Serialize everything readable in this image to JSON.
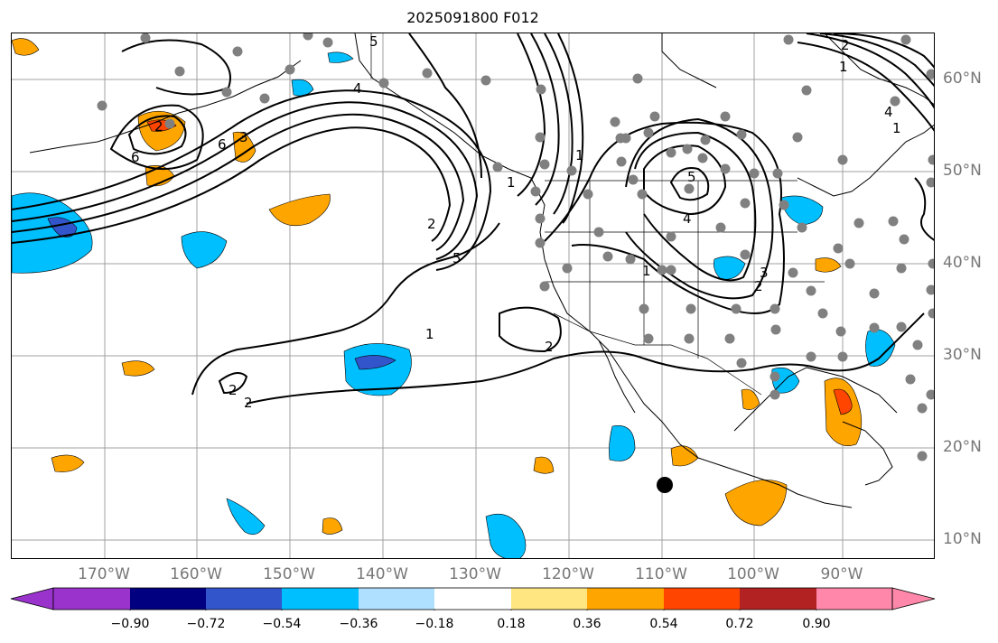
{
  "title": "2025091800 F012",
  "map": {
    "lon_labels": [
      "170°W",
      "160°W",
      "150°W",
      "140°W",
      "130°W",
      "120°W",
      "110°W",
      "100°W",
      "90°W"
    ],
    "lat_labels": [
      "60°N",
      "50°N",
      "40°N",
      "30°N",
      "20°N",
      "10°N"
    ],
    "contour_labels": [
      "4",
      "5",
      "6",
      "6",
      "2",
      "3",
      "5",
      "4",
      "2",
      "2",
      "1",
      "1",
      "1",
      "1",
      "1",
      "1",
      "5",
      "4",
      "3",
      "2",
      "2",
      "2",
      "2"
    ],
    "colors": {
      "contour": "#000000",
      "station": "#808080",
      "marker": "#000000",
      "grid": "#a0a0a0",
      "coast": "#000000"
    }
  },
  "colorbar": {
    "tick_labels": [
      "−0.90",
      "−0.72",
      "−0.54",
      "−0.36",
      "−0.18",
      "0.18",
      "0.36",
      "0.54",
      "0.72",
      "0.90"
    ],
    "colors": [
      "#9933cc",
      "#000080",
      "#3355cc",
      "#00bfff",
      "#b0e0ff",
      "#ffffff",
      "#ffe680",
      "#ffa500",
      "#ff4500",
      "#b22222",
      "#ff88aa"
    ]
  }
}
